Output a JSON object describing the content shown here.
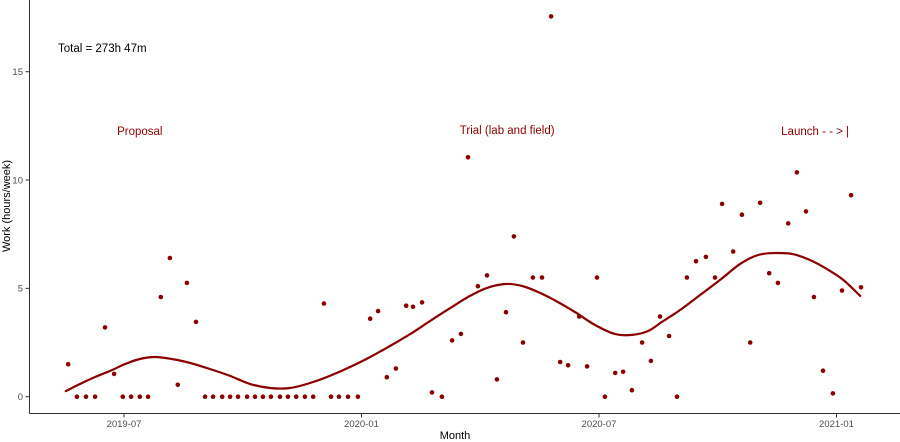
{
  "chart_data": {
    "type": "scatter",
    "title": "",
    "xlabel": "Month",
    "ylabel": "Work (hours/week)",
    "annotation": {
      "label": "Total = 273h 47m",
      "month": 4.33,
      "hours": 16.1
    },
    "x_axis_note": "month index: 6 = 2019-07, 12 = 2020-01, 18 = 2020-07, 24 = 2021-01",
    "x_ticks": [
      {
        "month": 6,
        "label": "2019-07"
      },
      {
        "month": 12,
        "label": "2020-01"
      },
      {
        "month": 18,
        "label": "2020-07"
      },
      {
        "month": 24,
        "label": "2021-01"
      }
    ],
    "y_ticks": [
      0,
      5,
      10,
      15
    ],
    "xlim_months": [
      3.63,
      25.53
    ],
    "ylim": [
      -0.75,
      18.3
    ],
    "grid": "off",
    "legend": "none",
    "phase_labels": [
      {
        "label": "Proposal",
        "month": 6.4,
        "hours": 12.08
      },
      {
        "label": "Trial (lab and field)",
        "month": 15.68,
        "hours": 12.12
      },
      {
        "label": "Launch - - > |",
        "month": 23.46,
        "hours": 12.08
      }
    ],
    "colors": {
      "accent": "#8B0000",
      "axis_text": "#4d4d4d",
      "axis_line": "#333333",
      "annotation_text": "#000000",
      "background": "#ffffff"
    },
    "points": [
      [
        4.59,
        1.5
      ],
      [
        4.81,
        0
      ],
      [
        5.04,
        0
      ],
      [
        5.27,
        0
      ],
      [
        5.52,
        3.2
      ],
      [
        5.75,
        1.05
      ],
      [
        5.97,
        0
      ],
      [
        6.18,
        0
      ],
      [
        6.4,
        0
      ],
      [
        6.61,
        0
      ],
      [
        6.93,
        4.6
      ],
      [
        7.16,
        6.4
      ],
      [
        7.36,
        0.55
      ],
      [
        7.59,
        5.25
      ],
      [
        7.82,
        3.45
      ],
      [
        8.05,
        0
      ],
      [
        8.25,
        0
      ],
      [
        8.48,
        0
      ],
      [
        8.68,
        0
      ],
      [
        8.88,
        0
      ],
      [
        9.11,
        0
      ],
      [
        9.31,
        0
      ],
      [
        9.51,
        0
      ],
      [
        9.71,
        0
      ],
      [
        9.94,
        0
      ],
      [
        10.14,
        0
      ],
      [
        10.35,
        0
      ],
      [
        10.57,
        0
      ],
      [
        10.78,
        0
      ],
      [
        11.05,
        4.3
      ],
      [
        11.23,
        0
      ],
      [
        11.43,
        0
      ],
      [
        11.66,
        0
      ],
      [
        11.91,
        0
      ],
      [
        12.22,
        3.6
      ],
      [
        12.42,
        3.95
      ],
      [
        12.64,
        0.9
      ],
      [
        12.87,
        1.3
      ],
      [
        13.13,
        4.2
      ],
      [
        13.3,
        4.15
      ],
      [
        13.53,
        4.35
      ],
      [
        13.78,
        0.2
      ],
      [
        14.03,
        0
      ],
      [
        14.29,
        2.6
      ],
      [
        14.51,
        2.9
      ],
      [
        14.69,
        11.05
      ],
      [
        14.94,
        5.1
      ],
      [
        15.17,
        5.6
      ],
      [
        15.42,
        0.8
      ],
      [
        15.65,
        3.9
      ],
      [
        15.85,
        7.4
      ],
      [
        16.08,
        2.5
      ],
      [
        16.33,
        5.5
      ],
      [
        16.56,
        5.5
      ],
      [
        16.79,
        17.55
      ],
      [
        17.02,
        1.6
      ],
      [
        17.22,
        1.45
      ],
      [
        17.5,
        3.7
      ],
      [
        17.7,
        1.4
      ],
      [
        17.95,
        5.5
      ],
      [
        18.15,
        0
      ],
      [
        18.41,
        1.1
      ],
      [
        18.61,
        1.15
      ],
      [
        18.83,
        0.3
      ],
      [
        19.09,
        2.5
      ],
      [
        19.31,
        1.65
      ],
      [
        19.54,
        3.7
      ],
      [
        19.77,
        2.8
      ],
      [
        19.97,
        0
      ],
      [
        20.22,
        5.5
      ],
      [
        20.45,
        6.25
      ],
      [
        20.7,
        6.45
      ],
      [
        20.93,
        5.5
      ],
      [
        21.11,
        8.9
      ],
      [
        21.39,
        6.7
      ],
      [
        21.61,
        8.4
      ],
      [
        21.82,
        2.5
      ],
      [
        22.07,
        8.95
      ],
      [
        22.3,
        5.7
      ],
      [
        22.52,
        5.25
      ],
      [
        22.78,
        8.0
      ],
      [
        23.0,
        10.35
      ],
      [
        23.23,
        8.55
      ],
      [
        23.43,
        4.6
      ],
      [
        23.66,
        1.2
      ],
      [
        23.91,
        0.15
      ],
      [
        24.14,
        4.9
      ],
      [
        24.37,
        9.3
      ],
      [
        24.62,
        5.05
      ]
    ],
    "trend_curve": [
      [
        4.53,
        0.26
      ],
      [
        4.89,
        0.59
      ],
      [
        5.27,
        0.91
      ],
      [
        5.65,
        1.19
      ],
      [
        6.03,
        1.51
      ],
      [
        6.4,
        1.74
      ],
      [
        6.78,
        1.83
      ],
      [
        7.21,
        1.74
      ],
      [
        7.67,
        1.56
      ],
      [
        8.17,
        1.28
      ],
      [
        8.68,
        0.96
      ],
      [
        9.18,
        0.59
      ],
      [
        9.69,
        0.4
      ],
      [
        10.19,
        0.4
      ],
      [
        10.7,
        0.63
      ],
      [
        11.2,
        0.96
      ],
      [
        11.71,
        1.37
      ],
      [
        12.22,
        1.83
      ],
      [
        12.72,
        2.34
      ],
      [
        13.23,
        2.89
      ],
      [
        13.73,
        3.49
      ],
      [
        14.24,
        4.09
      ],
      [
        14.74,
        4.65
      ],
      [
        15.17,
        5.02
      ],
      [
        15.63,
        5.2
      ],
      [
        16.06,
        5.11
      ],
      [
        16.51,
        4.79
      ],
      [
        16.96,
        4.37
      ],
      [
        17.39,
        3.91
      ],
      [
        17.9,
        3.31
      ],
      [
        18.41,
        2.89
      ],
      [
        18.83,
        2.85
      ],
      [
        19.24,
        3.03
      ],
      [
        19.59,
        3.45
      ],
      [
        20.05,
        4.0
      ],
      [
        20.55,
        4.69
      ],
      [
        21.06,
        5.39
      ],
      [
        21.56,
        6.12
      ],
      [
        22.02,
        6.54
      ],
      [
        22.45,
        6.63
      ],
      [
        22.88,
        6.59
      ],
      [
        23.33,
        6.31
      ],
      [
        23.76,
        5.89
      ],
      [
        24.17,
        5.39
      ],
      [
        24.6,
        4.65
      ]
    ],
    "style": {
      "point_radius": 2.3,
      "curve_width": 2.2
    }
  }
}
